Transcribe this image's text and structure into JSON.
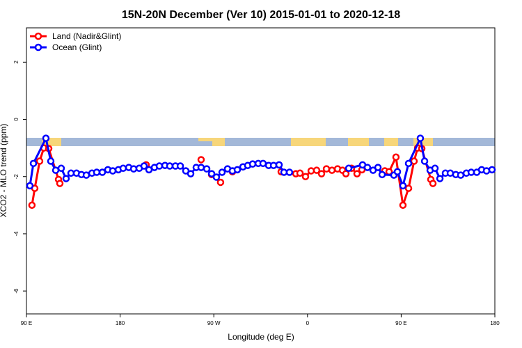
{
  "chart_data": {
    "type": "line",
    "title": "15N-20N December (Ver 10)   2015-01-01 to 2020-12-18",
    "xlabel": "Longitude (deg E)",
    "ylabel": "XCO2 - MLO trend (ppm)",
    "xlim": [
      90,
      540
    ],
    "ylim": [
      -6.8,
      3.2
    ],
    "xticks": [
      {
        "value": 90,
        "label": "90 E"
      },
      180,
      {
        "value": 270,
        "label": "90 W"
      },
      {
        "value": 360,
        "label": "0"
      },
      {
        "value": 450,
        "label": "90 E"
      },
      {
        "value": 540,
        "label": "180"
      }
    ],
    "yticks": [
      -6,
      -4,
      -2,
      0,
      2
    ],
    "legend": "top-left",
    "series": [
      {
        "name": "Land (Nadir&Glint)",
        "color": "#ff0000",
        "x": [
          95.3,
          98,
          102.7,
          106.7,
          111.4,
          120.8,
          122.1,
          160,
          205,
          230,
          257.8,
          262,
          267.9,
          276.5,
          282,
          287.9,
          310,
          334.7,
          348.8,
          352.8,
          358.1,
          363.5,
          368.8,
          373.5,
          378.2,
          383.5,
          388.9,
          393.6,
          396.9,
          402.3,
          407.6,
          412.3,
          420,
          434.3,
          438.4,
          445,
          451.7,
          457.1,
          462.4,
          465.8,
          469.8,
          478.5,
          480.5
        ],
        "values": [
          -3.0,
          -2.41,
          -1.46,
          -1.0,
          -1.02,
          -2.1,
          -2.24,
          null,
          -1.59,
          null,
          -1.41,
          null,
          -1.93,
          -2.2,
          null,
          -1.83,
          null,
          -1.83,
          -1.9,
          -1.88,
          -2.0,
          -1.8,
          -1.78,
          -1.9,
          -1.73,
          -1.78,
          -1.73,
          -1.78,
          -1.9,
          -1.71,
          -1.9,
          -1.76,
          null,
          -1.8,
          -1.83,
          -1.32,
          -3.0,
          -2.41,
          -1.46,
          -1.0,
          -1.02,
          -2.1,
          -2.24
        ]
      },
      {
        "name": "Ocean (Glint)",
        "color": "#0000ff",
        "x": [
          93.3,
          96.7,
          108.7,
          113.4,
          118.1,
          123.4,
          128.1,
          132.8,
          138.1,
          142.8,
          147.5,
          152.9,
          157.5,
          162.9,
          168.2,
          172.9,
          178.3,
          182.9,
          188.3,
          193,
          198.3,
          203,
          207.7,
          213,
          217.7,
          223.1,
          227.7,
          233.1,
          237.8,
          243.1,
          247.8,
          253.1,
          257.8,
          263.2,
          267.9,
          272.5,
          277.9,
          283.2,
          287.9,
          292.6,
          298,
          302.6,
          307.3,
          312.7,
          317.3,
          322.7,
          327.4,
          332.7,
          337.4,
          342.7,
          370,
          399.6,
          412.9,
          417.6,
          423,
          427.7,
          431.7,
          443,
          446.4,
          451.7,
          457.1,
          468.4,
          472.5,
          477.8,
          482.5,
          487.2,
          492.5,
          497.2,
          502.5,
          507.2,
          512.6,
          517.3,
          522.6,
          527.3,
          532,
          537.3
        ],
        "values": [
          -2.32,
          -1.54,
          -0.66,
          -1.46,
          -1.78,
          -1.71,
          -2.07,
          -1.88,
          -1.88,
          -1.93,
          -1.95,
          -1.88,
          -1.85,
          -1.85,
          -1.76,
          -1.8,
          -1.76,
          -1.71,
          -1.68,
          -1.73,
          -1.71,
          -1.63,
          -1.76,
          -1.68,
          -1.63,
          -1.61,
          -1.63,
          -1.63,
          -1.63,
          -1.8,
          -1.9,
          -1.68,
          -1.68,
          -1.73,
          -1.9,
          -2.02,
          -1.85,
          -1.73,
          -1.8,
          -1.76,
          -1.66,
          -1.61,
          -1.56,
          -1.54,
          -1.54,
          -1.61,
          -1.61,
          -1.59,
          -1.85,
          -1.85,
          null,
          -1.71,
          -1.59,
          -1.68,
          -1.78,
          -1.68,
          -1.93,
          -1.95,
          -1.83,
          -2.32,
          -1.54,
          -0.66,
          -1.46,
          -1.78,
          -1.71,
          -2.07,
          -1.88,
          -1.88,
          -1.93,
          -1.95,
          -1.88,
          -1.85,
          -1.85,
          -1.76,
          -1.8,
          -1.76
        ]
      }
    ]
  }
}
